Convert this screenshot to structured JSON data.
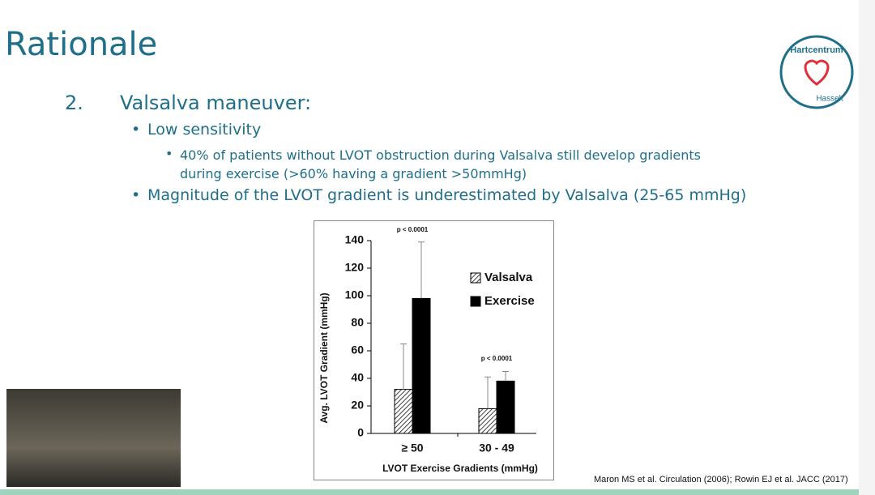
{
  "slide": {
    "title": "Rationale",
    "number": "2.",
    "heading": "Valsalva maneuver:",
    "bullets": [
      {
        "text": "Low sensitivity",
        "sub": [
          "40% of patients without LVOT obstruction during Valsalva still develop gradients during exercise (>60% having a gradient >50mmHg)"
        ]
      },
      {
        "text": "Magnitude of the LVOT gradient is underestimated by Valsalva (25-65 mmHg)"
      }
    ],
    "reference": "Maron MS et al. Circulation (2006); Rowin EJ et al. JACC (2017)"
  },
  "logo": {
    "top": "Hartcentrum",
    "bottom": "Hasselt"
  },
  "chart_data": {
    "type": "bar",
    "y_label": "Avg. LVOT Gradient (mmHg)",
    "x_label": "LVOT Exercise Gradients (mmHg)",
    "categories": [
      "≥ 50",
      "30 - 49"
    ],
    "series": [
      {
        "name": "Valsalva",
        "color": "#ffffff",
        "values": [
          32,
          18
        ],
        "errors": [
          33,
          23
        ]
      },
      {
        "name": "Exercise",
        "color": "#000000",
        "values": [
          98,
          38
        ],
        "errors": [
          41,
          7
        ]
      }
    ],
    "annotations": [
      "p < 0.0001",
      "p < 0.0001"
    ],
    "ylim": [
      0,
      140
    ],
    "yticks": [
      0,
      20,
      40,
      60,
      80,
      100,
      120,
      140
    ]
  }
}
